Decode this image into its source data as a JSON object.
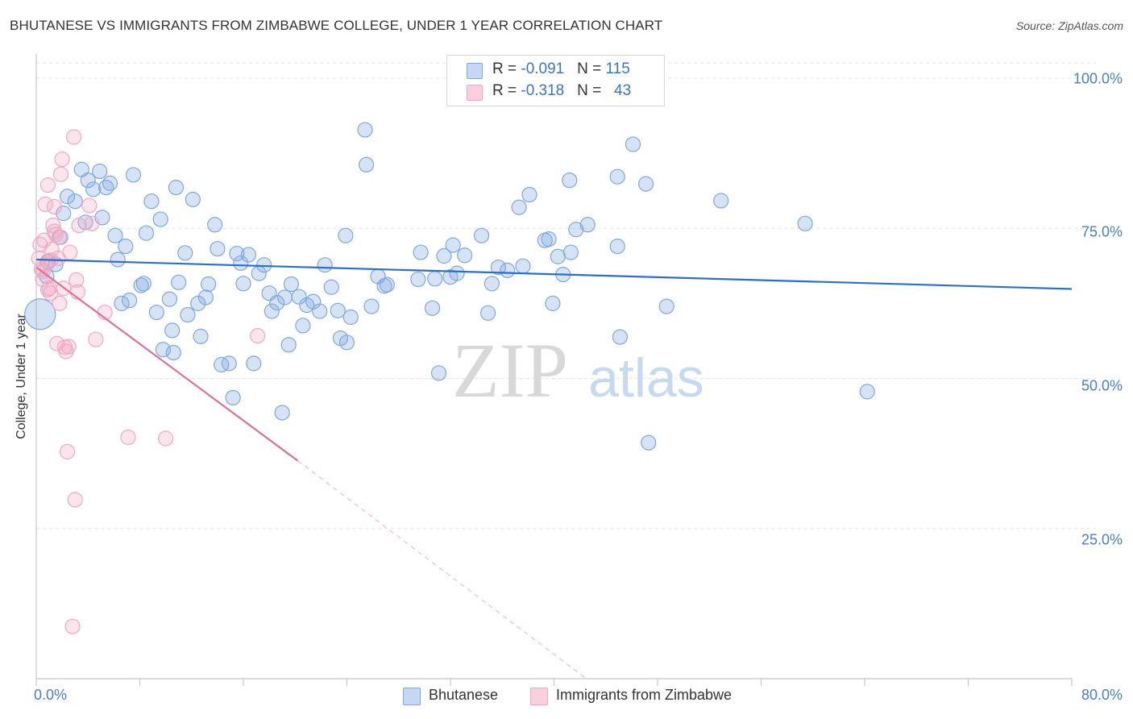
{
  "chart_data": {
    "type": "scatter",
    "title": "BHUTANESE VS IMMIGRANTS FROM ZIMBABWE COLLEGE, UNDER 1 YEAR CORRELATION CHART",
    "source": "Source: ZipAtlas.com",
    "ylabel": "College, Under 1 year",
    "xlabel": "",
    "xlim": [
      0,
      80
    ],
    "ylim": [
      0,
      100
    ],
    "x_ticks": [
      "0.0%",
      "80.0%"
    ],
    "y_ticks": [
      {
        "value": 100,
        "label": "100.0%"
      },
      {
        "value": 75,
        "label": "75.0%"
      },
      {
        "value": 50,
        "label": "50.0%"
      },
      {
        "value": 25,
        "label": "25.0%"
      }
    ],
    "watermark": {
      "zip": "ZIP",
      "atlas": "atlas"
    },
    "legend": [
      {
        "r_label": "R = ",
        "r_value": "-0.091",
        "n_label": "N = ",
        "n_value": "115"
      },
      {
        "r_label": "R = ",
        "r_value": "-0.318",
        "n_label": "N = ",
        "n_value": "43"
      }
    ],
    "series": [
      {
        "name": "Bhutanese",
        "color": "#7fa8e0",
        "line_color": "#2d6ec8",
        "trend": {
          "x0": 0,
          "y0": 69.8,
          "x1": 80,
          "y1": 64.9
        },
        "points": [
          [
            0.3,
            60.7
          ],
          [
            0.8,
            67.0
          ],
          [
            0.9,
            69.5
          ],
          [
            1.5,
            69.0
          ],
          [
            1.8,
            73.5
          ],
          [
            2.1,
            77.5
          ],
          [
            2.4,
            80.3
          ],
          [
            3.0,
            79.5
          ],
          [
            3.5,
            84.8
          ],
          [
            3.8,
            76.0
          ],
          [
            4.0,
            83.0
          ],
          [
            4.4,
            81.5
          ],
          [
            4.9,
            84.5
          ],
          [
            5.1,
            76.8
          ],
          [
            5.4,
            81.8
          ],
          [
            5.7,
            82.5
          ],
          [
            6.1,
            73.8
          ],
          [
            6.3,
            69.8
          ],
          [
            6.6,
            62.5
          ],
          [
            6.9,
            72.0
          ],
          [
            7.2,
            63.0
          ],
          [
            7.5,
            83.9
          ],
          [
            8.1,
            65.5
          ],
          [
            8.3,
            65.8
          ],
          [
            8.5,
            74.2
          ],
          [
            8.9,
            79.5
          ],
          [
            9.3,
            61.0
          ],
          [
            9.6,
            76.5
          ],
          [
            9.8,
            54.8
          ],
          [
            10.3,
            63.2
          ],
          [
            10.6,
            54.3
          ],
          [
            10.8,
            81.8
          ],
          [
            11.0,
            66.0
          ],
          [
            11.5,
            70.9
          ],
          [
            11.7,
            60.6
          ],
          [
            12.1,
            79.8
          ],
          [
            12.5,
            62.5
          ],
          [
            12.7,
            57.0
          ],
          [
            13.1,
            63.5
          ],
          [
            13.3,
            65.7
          ],
          [
            13.8,
            75.6
          ],
          [
            14.0,
            71.6
          ],
          [
            14.3,
            52.3
          ],
          [
            14.9,
            52.5
          ],
          [
            15.2,
            46.8
          ],
          [
            15.5,
            70.8
          ],
          [
            15.8,
            69.2
          ],
          [
            16.0,
            65.8
          ],
          [
            16.4,
            70.6
          ],
          [
            16.8,
            52.5
          ],
          [
            17.2,
            67.5
          ],
          [
            17.6,
            68.9
          ],
          [
            18.0,
            64.2
          ],
          [
            18.2,
            61.2
          ],
          [
            18.6,
            62.6
          ],
          [
            19.0,
            44.3
          ],
          [
            19.2,
            63.5
          ],
          [
            19.5,
            55.6
          ],
          [
            19.7,
            65.7
          ],
          [
            20.3,
            63.6
          ],
          [
            20.6,
            58.8
          ],
          [
            20.9,
            62.2
          ],
          [
            21.4,
            62.8
          ],
          [
            21.9,
            61.2
          ],
          [
            22.3,
            68.9
          ],
          [
            22.8,
            65.2
          ],
          [
            23.3,
            61.3
          ],
          [
            23.5,
            56.7
          ],
          [
            23.9,
            73.8
          ],
          [
            24.3,
            60.2
          ],
          [
            25.4,
            91.4
          ],
          [
            25.5,
            85.6
          ],
          [
            25.9,
            62.0
          ],
          [
            26.4,
            67.0
          ],
          [
            26.9,
            65.4
          ],
          [
            27.1,
            65.6
          ],
          [
            29.5,
            66.5
          ],
          [
            29.7,
            71.0
          ],
          [
            30.6,
            61.7
          ],
          [
            30.8,
            66.6
          ],
          [
            31.1,
            50.9
          ],
          [
            31.5,
            70.4
          ],
          [
            32.0,
            66.9
          ],
          [
            32.2,
            72.2
          ],
          [
            32.5,
            67.5
          ],
          [
            33.1,
            70.5
          ],
          [
            34.4,
            73.8
          ],
          [
            34.9,
            60.9
          ],
          [
            35.2,
            65.8
          ],
          [
            35.7,
            68.5
          ],
          [
            36.4,
            68.0
          ],
          [
            37.3,
            78.5
          ],
          [
            37.6,
            68.7
          ],
          [
            38.1,
            80.6
          ],
          [
            39.3,
            73.0
          ],
          [
            39.6,
            73.2
          ],
          [
            39.9,
            62.5
          ],
          [
            40.3,
            70.3
          ],
          [
            40.7,
            67.3
          ],
          [
            41.2,
            83.0
          ],
          [
            41.3,
            71.0
          ],
          [
            41.7,
            74.8
          ],
          [
            42.6,
            75.6
          ],
          [
            44.9,
            83.6
          ],
          [
            45.1,
            56.9
          ],
          [
            46.1,
            89.0
          ],
          [
            47.1,
            82.4
          ],
          [
            47.3,
            39.3
          ],
          [
            48.7,
            62.0
          ],
          [
            52.9,
            79.6
          ],
          [
            59.4,
            75.8
          ],
          [
            64.2,
            47.8
          ],
          [
            44.9,
            72.0
          ],
          [
            10.5,
            58.0
          ],
          [
            24.0,
            56.0
          ]
        ]
      },
      {
        "name": "Immigrants from Zimbabwe",
        "color": "#f0a8c4",
        "line_color": "#e0709a",
        "trend": {
          "x0": 0,
          "y0": 68.5,
          "x1": 20.2,
          "y1": 36.3,
          "dash_x1": 42.5,
          "dash_y1": 0.0
        },
        "points": [
          [
            0.2,
            70.0
          ],
          [
            0.3,
            72.3
          ],
          [
            0.4,
            68.2
          ],
          [
            0.5,
            66.5
          ],
          [
            0.6,
            73.0
          ],
          [
            0.7,
            79.0
          ],
          [
            0.8,
            69.0
          ],
          [
            0.9,
            82.2
          ],
          [
            1.0,
            65.0
          ],
          [
            1.1,
            64.2
          ],
          [
            1.2,
            71.5
          ],
          [
            1.3,
            75.5
          ],
          [
            1.4,
            78.6
          ],
          [
            1.5,
            74.0
          ],
          [
            1.6,
            55.8
          ],
          [
            1.7,
            70.0
          ],
          [
            1.8,
            62.5
          ],
          [
            1.9,
            84.0
          ],
          [
            2.0,
            86.5
          ],
          [
            2.1,
            65.0
          ],
          [
            2.2,
            55.2
          ],
          [
            2.3,
            54.5
          ],
          [
            2.4,
            37.8
          ],
          [
            2.5,
            55.3
          ],
          [
            2.6,
            71.0
          ],
          [
            2.9,
            90.2
          ],
          [
            3.1,
            66.4
          ],
          [
            3.2,
            64.4
          ],
          [
            3.3,
            75.5
          ],
          [
            4.1,
            78.8
          ],
          [
            4.3,
            75.8
          ],
          [
            4.6,
            56.5
          ],
          [
            5.3,
            61.0
          ],
          [
            7.1,
            40.2
          ],
          [
            10.0,
            40.0
          ],
          [
            17.1,
            57.1
          ],
          [
            3.0,
            29.8
          ],
          [
            2.8,
            8.7
          ],
          [
            0.5,
            67.8
          ],
          [
            1.4,
            74.5
          ],
          [
            0.9,
            64.8
          ],
          [
            1.1,
            69.7
          ],
          [
            1.9,
            73.5
          ]
        ]
      }
    ]
  }
}
